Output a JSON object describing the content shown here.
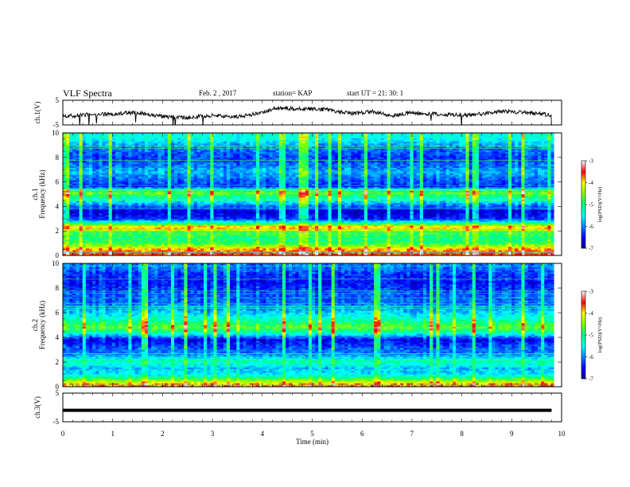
{
  "header": {
    "title": "VLF Spectra",
    "date": "Feb. 2 , 2017",
    "station": "station= KAP",
    "start": "start  UT  =   21: 30: 1"
  },
  "chart_data": [
    {
      "type": "line",
      "name": "ch1-waveform",
      "ylabel": "ch.1(V)",
      "ylim": [
        -5,
        5
      ],
      "yticks": [
        "5",
        "-5"
      ],
      "xlim": [
        0,
        10
      ],
      "x_end": 9.8,
      "trend": [
        {
          "t": 0.0,
          "v": -1.5
        },
        {
          "t": 0.5,
          "v": -0.8
        },
        {
          "t": 1.0,
          "v": -0.5
        },
        {
          "t": 1.5,
          "v": 0.0
        },
        {
          "t": 2.0,
          "v": -1.6
        },
        {
          "t": 2.5,
          "v": -2.0
        },
        {
          "t": 3.0,
          "v": -1.0
        },
        {
          "t": 3.5,
          "v": -1.8
        },
        {
          "t": 4.0,
          "v": 0.0
        },
        {
          "t": 4.3,
          "v": 2.0
        },
        {
          "t": 4.8,
          "v": 1.5
        },
        {
          "t": 5.3,
          "v": 1.2
        },
        {
          "t": 5.8,
          "v": -0.5
        },
        {
          "t": 6.2,
          "v": 0.5
        },
        {
          "t": 6.6,
          "v": -1.2
        },
        {
          "t": 7.0,
          "v": 0.0
        },
        {
          "t": 7.6,
          "v": -0.8
        },
        {
          "t": 8.2,
          "v": -1.0
        },
        {
          "t": 8.8,
          "v": 0.5
        },
        {
          "t": 9.3,
          "v": 0.0
        },
        {
          "t": 9.8,
          "v": -1.0
        }
      ]
    },
    {
      "type": "heatmap",
      "name": "ch1-spectrogram",
      "ylabel": "ch.1\nFrequency (kHz)",
      "ylim": [
        0,
        10
      ],
      "yticks": [
        0,
        2,
        4,
        6,
        8,
        10
      ],
      "xlim": [
        0,
        10
      ],
      "colorbar": {
        "label": "log(PSD)(V²/Hz)",
        "range": [
          -7,
          -3
        ],
        "ticks": [
          -3,
          -4,
          -5,
          -6,
          -7
        ]
      },
      "bands": [
        {
          "f": 0.2,
          "level": -3.6
        },
        {
          "f": 0.6,
          "level": -4.0
        },
        {
          "f": 1.0,
          "level": -4.9
        },
        {
          "f": 1.4,
          "level": -5.0
        },
        {
          "f": 1.9,
          "level": -4.7
        },
        {
          "f": 2.3,
          "level": -3.8
        },
        {
          "f": 2.6,
          "level": -5.1
        },
        {
          "f": 3.0,
          "level": -6.4
        },
        {
          "f": 3.6,
          "level": -6.7
        },
        {
          "f": 4.1,
          "level": -6.0
        },
        {
          "f": 4.6,
          "level": -5.3
        },
        {
          "f": 5.2,
          "level": -4.5
        },
        {
          "f": 5.6,
          "level": -6.4
        },
        {
          "f": 6.2,
          "level": -6.1
        },
        {
          "f": 6.8,
          "level": -5.8
        },
        {
          "f": 7.4,
          "level": -6.1
        },
        {
          "f": 8.0,
          "level": -6.3
        },
        {
          "f": 8.8,
          "level": -6.0
        },
        {
          "f": 9.6,
          "level": -5.4
        }
      ]
    },
    {
      "type": "heatmap",
      "name": "ch2-spectrogram",
      "ylabel": "ch.2\nFrequency (kHz)",
      "ylim": [
        0,
        10
      ],
      "yticks": [
        0,
        2,
        4,
        6,
        8,
        10
      ],
      "xlim": [
        0,
        10
      ],
      "colorbar": {
        "label": "log(PSD)(V²/Hz)",
        "range": [
          -7,
          -3
        ],
        "ticks": [
          -3,
          -4,
          -5,
          -6,
          -7
        ]
      },
      "bands": [
        {
          "f": 0.2,
          "level": -3.8
        },
        {
          "f": 0.6,
          "level": -4.8
        },
        {
          "f": 1.0,
          "level": -5.6
        },
        {
          "f": 1.5,
          "level": -5.8
        },
        {
          "f": 2.0,
          "level": -5.2
        },
        {
          "f": 2.6,
          "level": -6.0
        },
        {
          "f": 3.2,
          "level": -6.2
        },
        {
          "f": 3.8,
          "level": -6.6
        },
        {
          "f": 4.4,
          "level": -5.2
        },
        {
          "f": 4.8,
          "level": -4.6
        },
        {
          "f": 5.4,
          "level": -5.2
        },
        {
          "f": 6.0,
          "level": -5.7
        },
        {
          "f": 6.8,
          "level": -6.1
        },
        {
          "f": 7.6,
          "level": -6.2
        },
        {
          "f": 8.4,
          "level": -6.5
        },
        {
          "f": 9.2,
          "level": -6.3
        },
        {
          "f": 9.8,
          "level": -6.0
        }
      ]
    },
    {
      "type": "line",
      "name": "ch3-waveform",
      "ylabel": "ch.3(V)",
      "ylim": [
        -5,
        5
      ],
      "yticks": [
        "5",
        "-5"
      ],
      "xlim": [
        0,
        10
      ],
      "x_end": 9.8,
      "value": -1.0
    }
  ],
  "xaxis": {
    "label": "Time  (min)",
    "ticks": [
      "0",
      "1",
      "2",
      "3",
      "4",
      "5",
      "6",
      "7",
      "8",
      "9",
      "10"
    ]
  }
}
